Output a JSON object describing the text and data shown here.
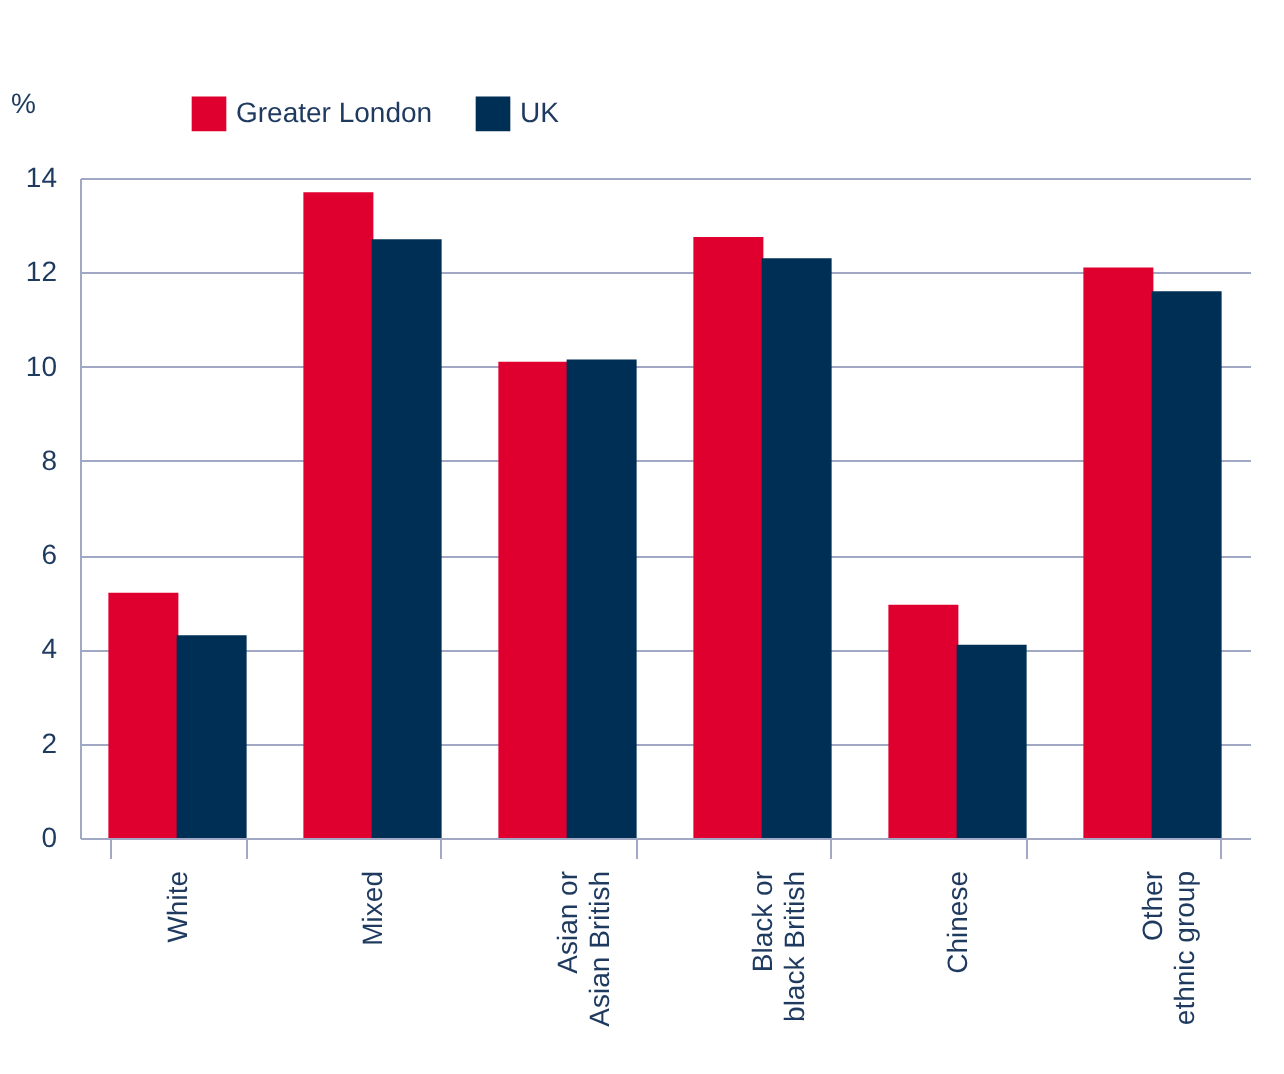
{
  "chart_data": {
    "type": "bar",
    "ylabel": "%",
    "categories": [
      "White",
      "Mixed",
      "Asian or\nAsian British",
      "Black or\nblack British",
      "Chinese",
      "Other\nethnic group"
    ],
    "series": [
      {
        "name": "Greater London",
        "color": "#e0002f",
        "values": [
          5.2,
          13.7,
          10.1,
          12.75,
          4.95,
          12.1
        ]
      },
      {
        "name": "UK",
        "color": "#002f56",
        "values": [
          4.3,
          12.7,
          10.15,
          12.3,
          4.1,
          11.6
        ]
      }
    ],
    "ylim": [
      0,
      14
    ],
    "yticks": [
      0,
      2,
      4,
      6,
      8,
      10,
      12,
      14
    ],
    "grid": "y",
    "legend": "top left"
  }
}
